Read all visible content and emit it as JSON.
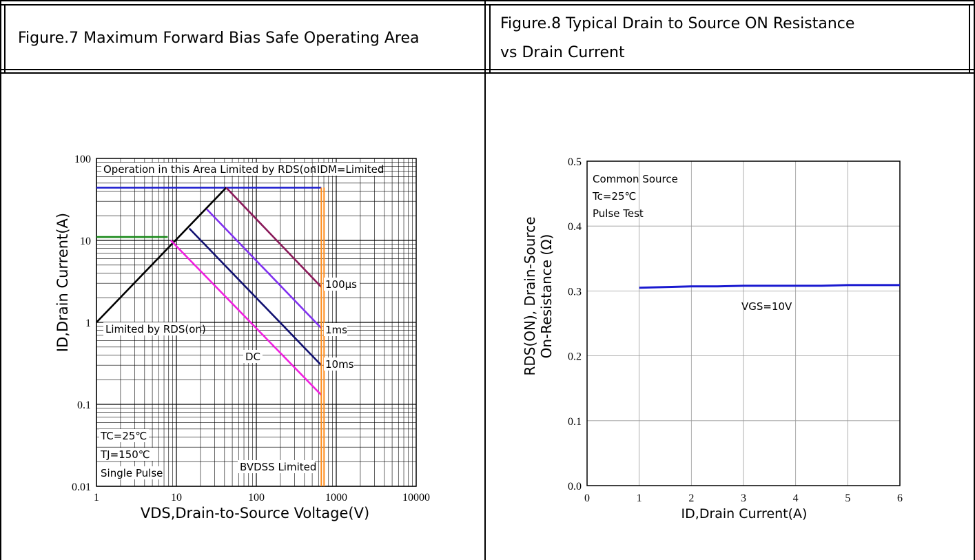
{
  "headers": {
    "fig7_title": "Figure.7 Maximum Forward Bias Safe Operating Area",
    "fig8_title_line1": "Figure.8 Typical Drain to Source ON Resistance",
    "fig8_title_line2": "vs Drain Current"
  },
  "fig7": {
    "ylabel": "ID,Drain Current(A)",
    "xlabel": "VDS,Drain-to-Source Voltage(V)",
    "yticks": [
      "100",
      "10",
      "1",
      "0.1",
      "0.01"
    ],
    "xticks": [
      "1",
      "10",
      "100",
      "1000",
      "10000"
    ],
    "annotations": {
      "op_area": "Operation in this Area Limited by RDS(on)",
      "idm": "IDM=Limited",
      "limited_rds": "Limited by RDS(on)",
      "dc": "DC",
      "t100us": "100μs",
      "t1ms": "1ms",
      "t10ms": "10ms",
      "tc": "TC=25℃",
      "tj": "TJ=150℃",
      "single": "Single Pulse",
      "bvdss": "BVDSS Limited"
    },
    "colors": {
      "idm": "#2020d0",
      "limit": "#ff8c1a",
      "rds": "#000000",
      "t100us": "#8a1a5a",
      "t1ms": "#8030f0",
      "t10ms": "#101070",
      "dc": "#f020e0",
      "green": "#1a8a1a"
    }
  },
  "fig8": {
    "ylabel_line1": "RDS(ON), Drain-Source",
    "ylabel_line2": "On-Resistance (Ω)",
    "xlabel": "ID,Drain Current(A)",
    "yticks": [
      "0.5",
      "0.4",
      "0.3",
      "0.2",
      "0.1",
      "0.0"
    ],
    "xticks": [
      "0",
      "1",
      "2",
      "3",
      "4",
      "5",
      "6"
    ],
    "annotations": {
      "common": "Common Source",
      "tc": "Tc=25℃",
      "pulse": "Pulse Test",
      "vgs": "VGS=10V"
    },
    "line_color": "#1a1ad0"
  },
  "chart_data": [
    {
      "type": "line",
      "title": "Figure.7 Maximum Forward Bias Safe Operating Area",
      "xlabel": "VDS,Drain-to-Source Voltage(V)",
      "ylabel": "ID,Drain Current(A)",
      "xscale": "log",
      "yscale": "log",
      "xlim": [
        1,
        10000
      ],
      "ylim": [
        0.01,
        100
      ],
      "grid": true,
      "series": [
        {
          "name": "IDM=Limited",
          "x": [
            1,
            650
          ],
          "y": [
            44,
            44
          ]
        },
        {
          "name": "Limited by RDS(on)",
          "x": [
            1,
            42
          ],
          "y": [
            1,
            44
          ]
        },
        {
          "name": "100μs",
          "x": [
            42,
            650
          ],
          "y": [
            44,
            2.7
          ]
        },
        {
          "name": "1ms",
          "x": [
            24,
            650
          ],
          "y": [
            24,
            0.85
          ]
        },
        {
          "name": "10ms",
          "x": [
            14.5,
            650
          ],
          "y": [
            14,
            0.3
          ]
        },
        {
          "name": "DC",
          "x": [
            8.5,
            650
          ],
          "y": [
            10,
            0.13
          ]
        },
        {
          "x": [
            1,
            7.8
          ],
          "y": [
            11,
            11
          ]
        },
        {
          "name": "BVDSS Limited",
          "x": [
            650,
            650
          ],
          "y": [
            0.01,
            44
          ]
        }
      ]
    },
    {
      "type": "line",
      "title": "Figure.8 Typical Drain to Source ON Resistance vs Drain Current",
      "xlabel": "ID,Drain Current(A)",
      "ylabel": "RDS(ON), Drain-Source On-Resistance (Ω)",
      "xlim": [
        0,
        6
      ],
      "ylim": [
        0,
        0.5
      ],
      "grid": true,
      "series": [
        {
          "name": "VGS=10V",
          "x": [
            1,
            1.5,
            2,
            2.5,
            3,
            3.5,
            4,
            4.5,
            5,
            5.5,
            6
          ],
          "y": [
            0.305,
            0.306,
            0.307,
            0.307,
            0.308,
            0.308,
            0.308,
            0.308,
            0.309,
            0.309,
            0.309
          ]
        }
      ]
    }
  ]
}
